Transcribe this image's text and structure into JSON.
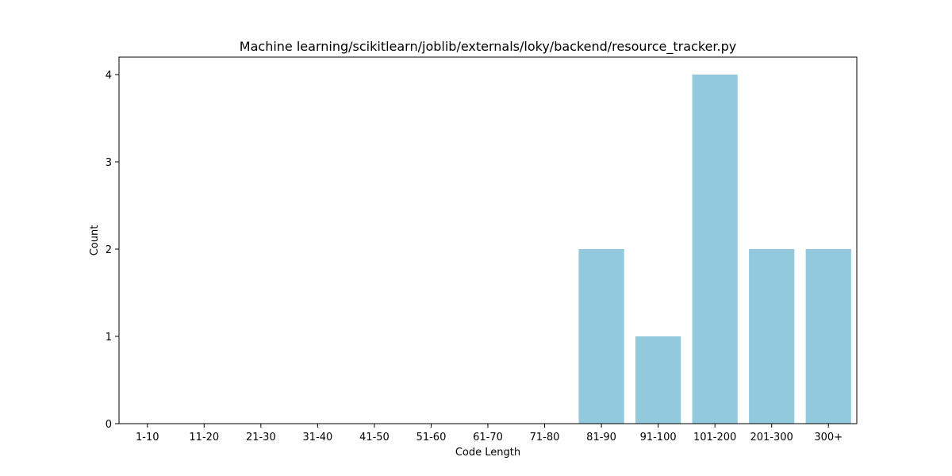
{
  "chart_data": {
    "type": "bar",
    "title": "Machine learning/scikitlearn/joblib/externals/loky/backend/resource_tracker.py",
    "xlabel": "Code Length",
    "ylabel": "Count",
    "categories": [
      "1-10",
      "11-20",
      "21-30",
      "31-40",
      "41-50",
      "51-60",
      "61-70",
      "71-80",
      "81-90",
      "91-100",
      "101-200",
      "201-300",
      "300+"
    ],
    "values": [
      0,
      0,
      0,
      0,
      0,
      0,
      0,
      0,
      2,
      1,
      4,
      2,
      2
    ],
    "ylim": [
      0,
      4.2
    ],
    "yticks": [
      0,
      1,
      2,
      3,
      4
    ],
    "grid": false,
    "bar_color": "#92c9dd"
  }
}
